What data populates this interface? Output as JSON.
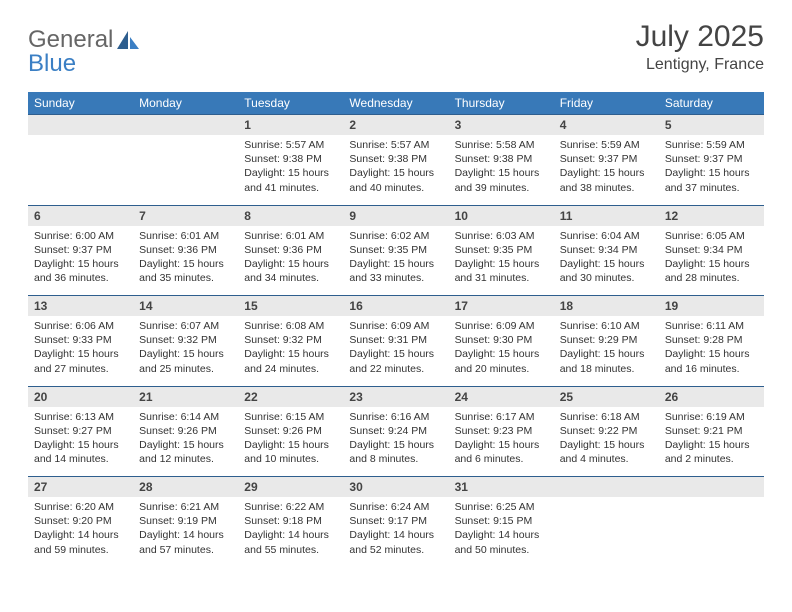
{
  "logo": {
    "text1": "General",
    "text2": "Blue"
  },
  "title": "July 2025",
  "location": "Lentigny, France",
  "days_of_week": [
    "Sunday",
    "Monday",
    "Tuesday",
    "Wednesday",
    "Thursday",
    "Friday",
    "Saturday"
  ],
  "colors": {
    "header_bg": "#3879b8",
    "header_text": "#ffffff",
    "daynum_bg": "#e9e9e9",
    "row_border": "#2e5e8e",
    "text": "#333333",
    "logo_gray": "#666666",
    "logo_blue": "#3b7fc4"
  },
  "weeks": [
    [
      {
        "n": "",
        "sunrise": "",
        "sunset": "",
        "daylight": ""
      },
      {
        "n": "",
        "sunrise": "",
        "sunset": "",
        "daylight": ""
      },
      {
        "n": "1",
        "sunrise": "Sunrise: 5:57 AM",
        "sunset": "Sunset: 9:38 PM",
        "daylight": "Daylight: 15 hours and 41 minutes."
      },
      {
        "n": "2",
        "sunrise": "Sunrise: 5:57 AM",
        "sunset": "Sunset: 9:38 PM",
        "daylight": "Daylight: 15 hours and 40 minutes."
      },
      {
        "n": "3",
        "sunrise": "Sunrise: 5:58 AM",
        "sunset": "Sunset: 9:38 PM",
        "daylight": "Daylight: 15 hours and 39 minutes."
      },
      {
        "n": "4",
        "sunrise": "Sunrise: 5:59 AM",
        "sunset": "Sunset: 9:37 PM",
        "daylight": "Daylight: 15 hours and 38 minutes."
      },
      {
        "n": "5",
        "sunrise": "Sunrise: 5:59 AM",
        "sunset": "Sunset: 9:37 PM",
        "daylight": "Daylight: 15 hours and 37 minutes."
      }
    ],
    [
      {
        "n": "6",
        "sunrise": "Sunrise: 6:00 AM",
        "sunset": "Sunset: 9:37 PM",
        "daylight": "Daylight: 15 hours and 36 minutes."
      },
      {
        "n": "7",
        "sunrise": "Sunrise: 6:01 AM",
        "sunset": "Sunset: 9:36 PM",
        "daylight": "Daylight: 15 hours and 35 minutes."
      },
      {
        "n": "8",
        "sunrise": "Sunrise: 6:01 AM",
        "sunset": "Sunset: 9:36 PM",
        "daylight": "Daylight: 15 hours and 34 minutes."
      },
      {
        "n": "9",
        "sunrise": "Sunrise: 6:02 AM",
        "sunset": "Sunset: 9:35 PM",
        "daylight": "Daylight: 15 hours and 33 minutes."
      },
      {
        "n": "10",
        "sunrise": "Sunrise: 6:03 AM",
        "sunset": "Sunset: 9:35 PM",
        "daylight": "Daylight: 15 hours and 31 minutes."
      },
      {
        "n": "11",
        "sunrise": "Sunrise: 6:04 AM",
        "sunset": "Sunset: 9:34 PM",
        "daylight": "Daylight: 15 hours and 30 minutes."
      },
      {
        "n": "12",
        "sunrise": "Sunrise: 6:05 AM",
        "sunset": "Sunset: 9:34 PM",
        "daylight": "Daylight: 15 hours and 28 minutes."
      }
    ],
    [
      {
        "n": "13",
        "sunrise": "Sunrise: 6:06 AM",
        "sunset": "Sunset: 9:33 PM",
        "daylight": "Daylight: 15 hours and 27 minutes."
      },
      {
        "n": "14",
        "sunrise": "Sunrise: 6:07 AM",
        "sunset": "Sunset: 9:32 PM",
        "daylight": "Daylight: 15 hours and 25 minutes."
      },
      {
        "n": "15",
        "sunrise": "Sunrise: 6:08 AM",
        "sunset": "Sunset: 9:32 PM",
        "daylight": "Daylight: 15 hours and 24 minutes."
      },
      {
        "n": "16",
        "sunrise": "Sunrise: 6:09 AM",
        "sunset": "Sunset: 9:31 PM",
        "daylight": "Daylight: 15 hours and 22 minutes."
      },
      {
        "n": "17",
        "sunrise": "Sunrise: 6:09 AM",
        "sunset": "Sunset: 9:30 PM",
        "daylight": "Daylight: 15 hours and 20 minutes."
      },
      {
        "n": "18",
        "sunrise": "Sunrise: 6:10 AM",
        "sunset": "Sunset: 9:29 PM",
        "daylight": "Daylight: 15 hours and 18 minutes."
      },
      {
        "n": "19",
        "sunrise": "Sunrise: 6:11 AM",
        "sunset": "Sunset: 9:28 PM",
        "daylight": "Daylight: 15 hours and 16 minutes."
      }
    ],
    [
      {
        "n": "20",
        "sunrise": "Sunrise: 6:13 AM",
        "sunset": "Sunset: 9:27 PM",
        "daylight": "Daylight: 15 hours and 14 minutes."
      },
      {
        "n": "21",
        "sunrise": "Sunrise: 6:14 AM",
        "sunset": "Sunset: 9:26 PM",
        "daylight": "Daylight: 15 hours and 12 minutes."
      },
      {
        "n": "22",
        "sunrise": "Sunrise: 6:15 AM",
        "sunset": "Sunset: 9:26 PM",
        "daylight": "Daylight: 15 hours and 10 minutes."
      },
      {
        "n": "23",
        "sunrise": "Sunrise: 6:16 AM",
        "sunset": "Sunset: 9:24 PM",
        "daylight": "Daylight: 15 hours and 8 minutes."
      },
      {
        "n": "24",
        "sunrise": "Sunrise: 6:17 AM",
        "sunset": "Sunset: 9:23 PM",
        "daylight": "Daylight: 15 hours and 6 minutes."
      },
      {
        "n": "25",
        "sunrise": "Sunrise: 6:18 AM",
        "sunset": "Sunset: 9:22 PM",
        "daylight": "Daylight: 15 hours and 4 minutes."
      },
      {
        "n": "26",
        "sunrise": "Sunrise: 6:19 AM",
        "sunset": "Sunset: 9:21 PM",
        "daylight": "Daylight: 15 hours and 2 minutes."
      }
    ],
    [
      {
        "n": "27",
        "sunrise": "Sunrise: 6:20 AM",
        "sunset": "Sunset: 9:20 PM",
        "daylight": "Daylight: 14 hours and 59 minutes."
      },
      {
        "n": "28",
        "sunrise": "Sunrise: 6:21 AM",
        "sunset": "Sunset: 9:19 PM",
        "daylight": "Daylight: 14 hours and 57 minutes."
      },
      {
        "n": "29",
        "sunrise": "Sunrise: 6:22 AM",
        "sunset": "Sunset: 9:18 PM",
        "daylight": "Daylight: 14 hours and 55 minutes."
      },
      {
        "n": "30",
        "sunrise": "Sunrise: 6:24 AM",
        "sunset": "Sunset: 9:17 PM",
        "daylight": "Daylight: 14 hours and 52 minutes."
      },
      {
        "n": "31",
        "sunrise": "Sunrise: 6:25 AM",
        "sunset": "Sunset: 9:15 PM",
        "daylight": "Daylight: 14 hours and 50 minutes."
      },
      {
        "n": "",
        "sunrise": "",
        "sunset": "",
        "daylight": ""
      },
      {
        "n": "",
        "sunrise": "",
        "sunset": "",
        "daylight": ""
      }
    ]
  ]
}
